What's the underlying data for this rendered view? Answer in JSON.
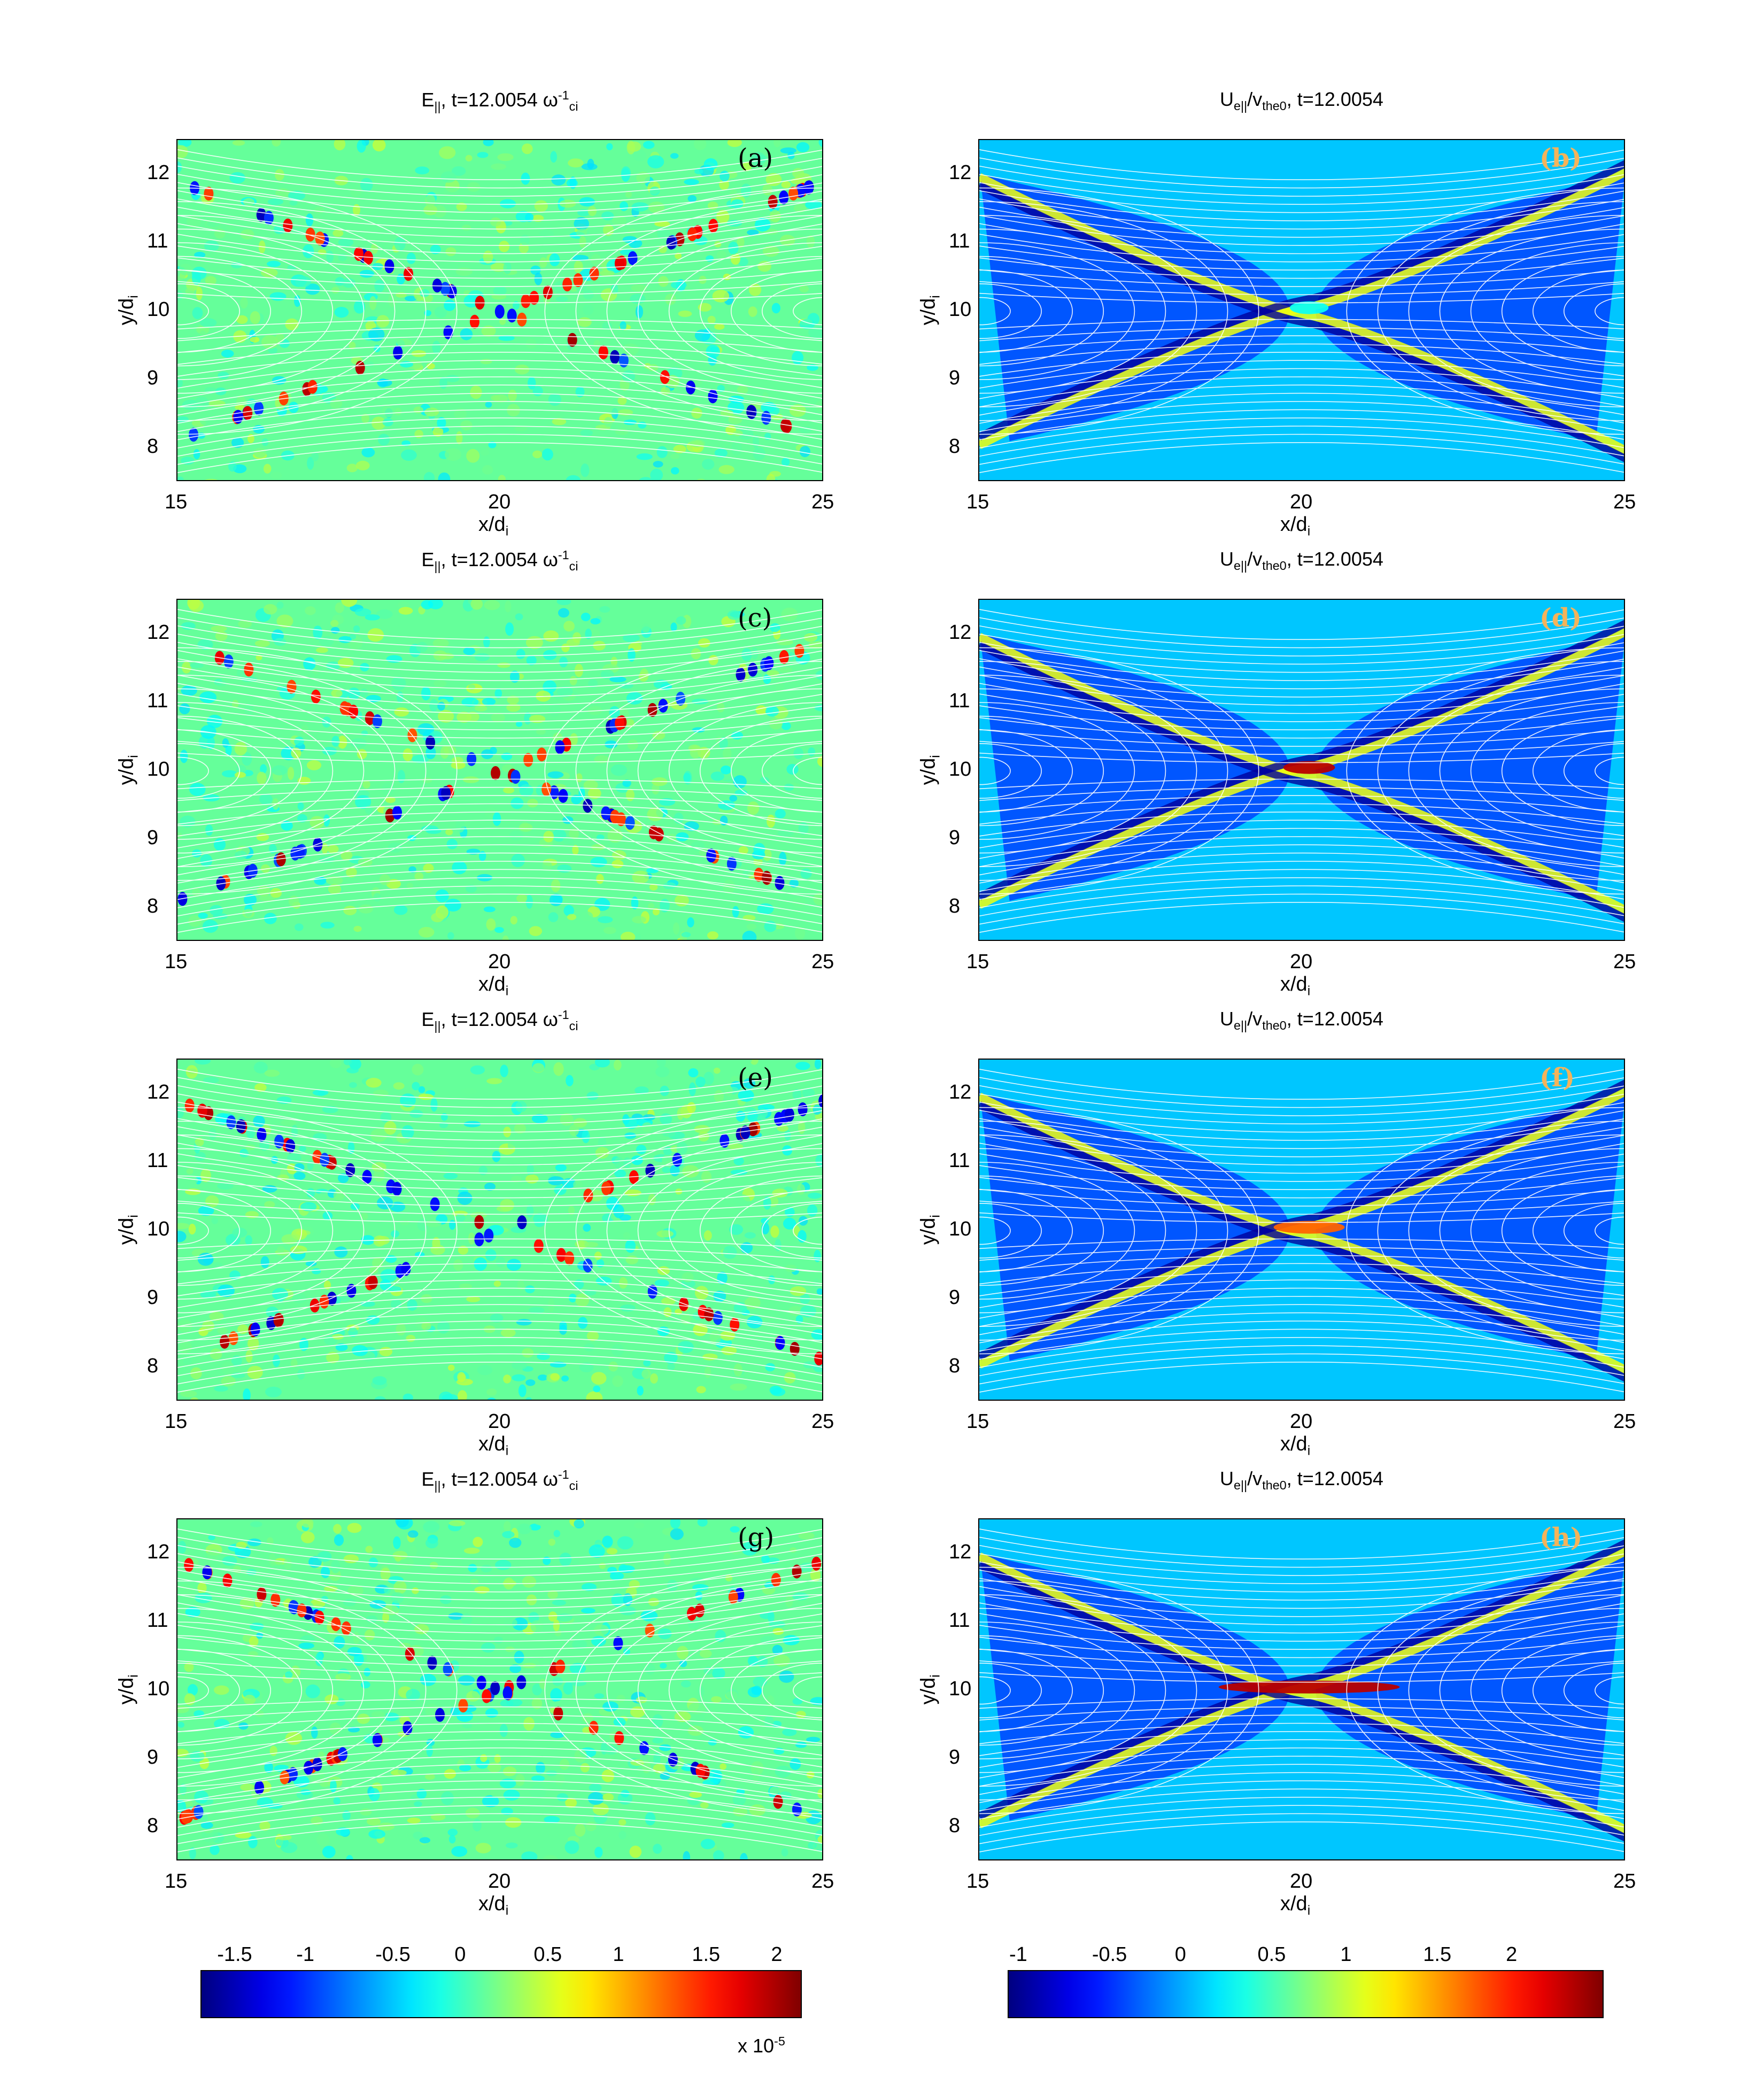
{
  "chart_data": [
    {
      "id": "a",
      "type": "heatmap",
      "tag": "(a)",
      "title_main": "E",
      "title_sub": "||",
      "title_rest": ", t=12.0054 ω",
      "title_sup": "-1",
      "title_sub2": "ci",
      "xlabel": "x/d",
      "xlabel_sub": "i",
      "ylabel": "y/d",
      "ylabel_sub": "i",
      "xticks": [
        "15",
        "20",
        "25"
      ],
      "yticks": [
        "8",
        "9",
        "10",
        "11",
        "12"
      ],
      "xlim": [
        15,
        25
      ],
      "ylim": [
        7.5,
        12.5
      ],
      "quantity": "E_parallel",
      "colormap": "jet",
      "clim": [
        -1.7,
        2.1
      ]
    },
    {
      "id": "b",
      "type": "heatmap",
      "tag": "(b)",
      "title_main": "U",
      "title_sub": "e||",
      "title_rest": "/v",
      "title_sub2": "the0",
      "title_tail": ", t=12.0054",
      "xlabel": "x/d",
      "xlabel_sub": "i",
      "ylabel": "y/d",
      "ylabel_sub": "i",
      "xticks": [
        "15",
        "20",
        "25"
      ],
      "yticks": [
        "8",
        "9",
        "10",
        "11",
        "12"
      ],
      "xlim": [
        15,
        25
      ],
      "ylim": [
        7.5,
        12.5
      ],
      "quantity": "U_e_parallel",
      "colormap": "jet",
      "clim": [
        -1.1,
        2.5
      ]
    },
    {
      "id": "c",
      "type": "heatmap",
      "tag": "(c)",
      "title_main": "E",
      "title_sub": "||",
      "title_rest": ", t=12.0054 ω",
      "title_sup": "-1",
      "title_sub2": "ci",
      "xlabel": "x/d",
      "xlabel_sub": "i",
      "ylabel": "y/d",
      "ylabel_sub": "i",
      "xticks": [
        "15",
        "20",
        "25"
      ],
      "yticks": [
        "8",
        "9",
        "10",
        "11",
        "12"
      ],
      "xlim": [
        15,
        25
      ],
      "ylim": [
        7.5,
        12.5
      ],
      "quantity": "E_parallel",
      "colormap": "jet",
      "clim": [
        -1.7,
        2.1
      ]
    },
    {
      "id": "d",
      "type": "heatmap",
      "tag": "(d)",
      "title_main": "U",
      "title_sub": "e||",
      "title_rest": "/v",
      "title_sub2": "the0",
      "title_tail": ", t=12.0054",
      "xlabel": "x/d",
      "xlabel_sub": "i",
      "ylabel": "y/d",
      "ylabel_sub": "i",
      "xticks": [
        "15",
        "20",
        "25"
      ],
      "yticks": [
        "8",
        "9",
        "10",
        "11",
        "12"
      ],
      "xlim": [
        15,
        25
      ],
      "ylim": [
        7.5,
        12.5
      ],
      "quantity": "U_e_parallel",
      "colormap": "jet",
      "clim": [
        -1.1,
        2.5
      ]
    },
    {
      "id": "e",
      "type": "heatmap",
      "tag": "(e)",
      "title_main": "E",
      "title_sub": "||",
      "title_rest": ", t=12.0054 ω",
      "title_sup": "-1",
      "title_sub2": "ci",
      "xlabel": "x/d",
      "xlabel_sub": "i",
      "ylabel": "y/d",
      "ylabel_sub": "i",
      "xticks": [
        "15",
        "20",
        "25"
      ],
      "yticks": [
        "8",
        "9",
        "10",
        "11",
        "12"
      ],
      "xlim": [
        15,
        25
      ],
      "ylim": [
        7.5,
        12.5
      ],
      "quantity": "E_parallel",
      "colormap": "jet",
      "clim": [
        -1.7,
        2.1
      ]
    },
    {
      "id": "f",
      "type": "heatmap",
      "tag": "(f)",
      "title_main": "U",
      "title_sub": "e||",
      "title_rest": "/v",
      "title_sub2": "the0",
      "title_tail": ", t=12.0054",
      "xlabel": "x/d",
      "xlabel_sub": "i",
      "ylabel": "y/d",
      "ylabel_sub": "i",
      "xticks": [
        "15",
        "20",
        "25"
      ],
      "yticks": [
        "8",
        "9",
        "10",
        "11",
        "12"
      ],
      "xlim": [
        15,
        25
      ],
      "ylim": [
        7.5,
        12.5
      ],
      "quantity": "U_e_parallel",
      "colormap": "jet",
      "clim": [
        -1.1,
        2.5
      ]
    },
    {
      "id": "g",
      "type": "heatmap",
      "tag": "(g)",
      "title_main": "E",
      "title_sub": "||",
      "title_rest": ", t=12.0054 ω",
      "title_sup": "-1",
      "title_sub2": "ci",
      "xlabel": "x/d",
      "xlabel_sub": "i",
      "ylabel": "y/d",
      "ylabel_sub": "i",
      "xticks": [
        "15",
        "20",
        "25"
      ],
      "yticks": [
        "8",
        "9",
        "10",
        "11",
        "12"
      ],
      "xlim": [
        15,
        25
      ],
      "ylim": [
        7.5,
        12.5
      ],
      "quantity": "E_parallel",
      "colormap": "jet",
      "clim": [
        -1.7,
        2.1
      ]
    },
    {
      "id": "h",
      "type": "heatmap",
      "tag": "(h)",
      "title_main": "U",
      "title_sub": "e||",
      "title_rest": "/v",
      "title_sub2": "the0",
      "title_tail": ", t=12.0054",
      "xlabel": "x/d",
      "xlabel_sub": "i",
      "ylabel": "y/d",
      "ylabel_sub": "i",
      "xticks": [
        "15",
        "20",
        "25"
      ],
      "yticks": [
        "8",
        "9",
        "10",
        "11",
        "12"
      ],
      "xlim": [
        15,
        25
      ],
      "ylim": [
        7.5,
        12.5
      ],
      "quantity": "U_e_parallel",
      "colormap": "jet",
      "clim": [
        -1.1,
        2.5
      ]
    }
  ],
  "colorbars": [
    {
      "id": "left",
      "ticks": [
        "-1.5",
        "-1",
        "-0.5",
        "0",
        "0.5",
        "1",
        "1.5",
        "2"
      ],
      "tick_values": [
        -1.5,
        -1,
        -0.5,
        0,
        0.5,
        1,
        1.5,
        2
      ],
      "range": [
        -1.7,
        2.1
      ],
      "exponent_base": "x 10",
      "exponent_power": "-5"
    },
    {
      "id": "right",
      "ticks": [
        "-1",
        "-0.5",
        "0",
        "0.5",
        "1",
        "1.5",
        "2"
      ],
      "tick_values": [
        -1,
        -0.5,
        0,
        0.5,
        1,
        1.5,
        2
      ],
      "range": [
        -1.1,
        2.5
      ]
    }
  ],
  "colors": {
    "tag_orange": "#f4b35a",
    "field_lines": "#ffffff",
    "axis": "#000000"
  }
}
